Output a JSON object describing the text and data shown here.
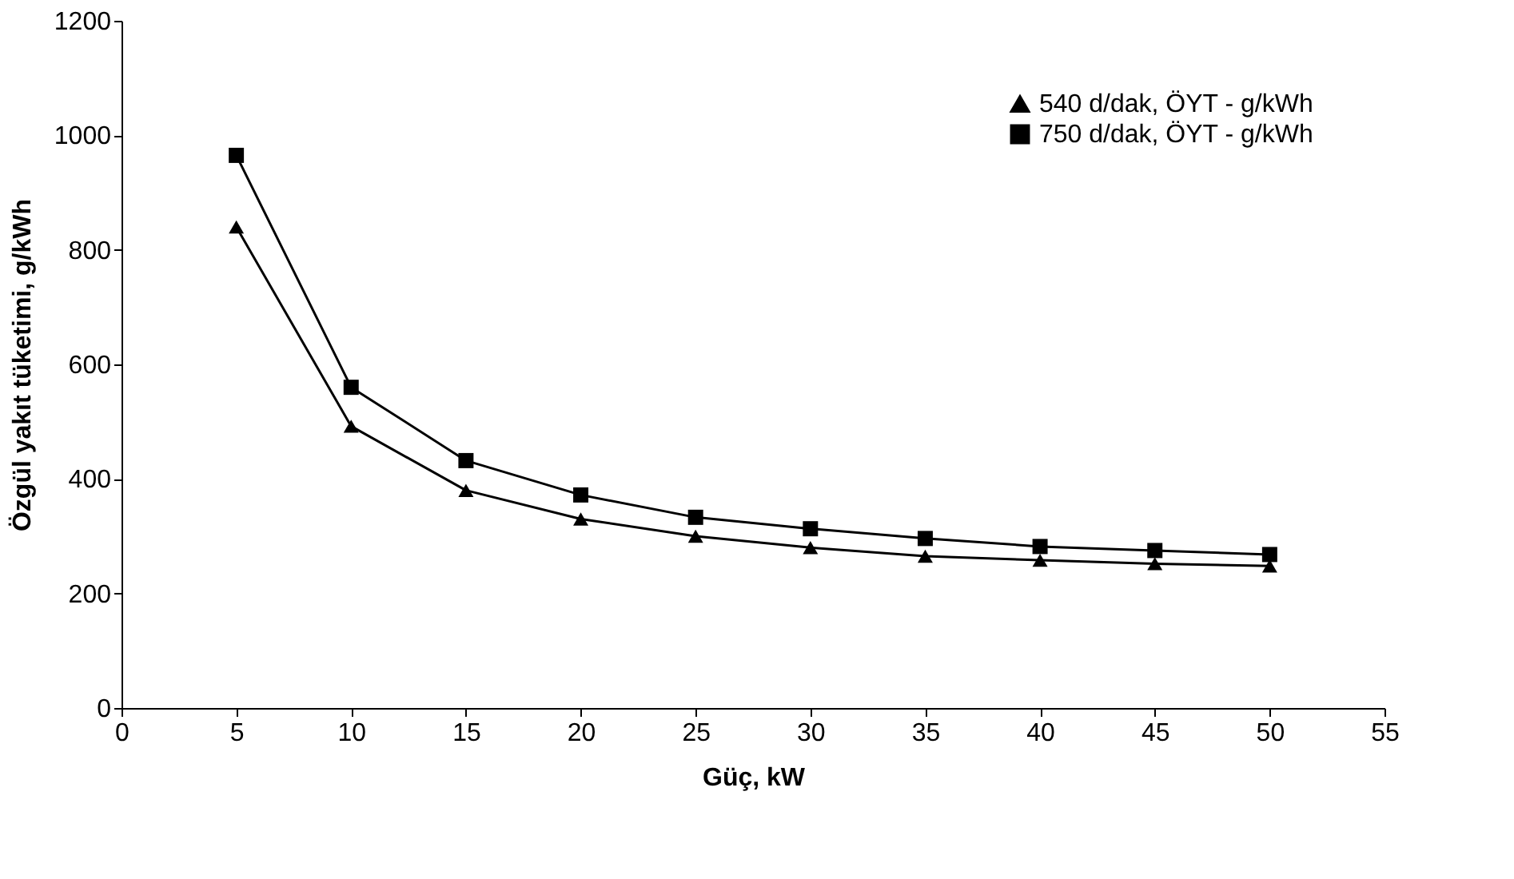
{
  "chart_data": {
    "type": "line",
    "xlabel": "Güç, kW",
    "ylabel": "Özgül yakıt tüketimi, g/kWh",
    "x": [
      5,
      10,
      15,
      20,
      25,
      30,
      35,
      40,
      45,
      50
    ],
    "series": [
      {
        "name": "540 d/dak, ÖYT - g/kWh",
        "color": "#000000",
        "marker": "triangle",
        "values": [
          840,
          492,
          380,
          330,
          300,
          280,
          265,
          258,
          252,
          248
        ]
      },
      {
        "name": "750 d/dak, ÖYT - g/kWh",
        "color": "#000000",
        "marker": "square",
        "values": [
          965,
          560,
          432,
          372,
          333,
          313,
          296,
          282,
          275,
          268
        ]
      }
    ],
    "xlim": [
      0,
      55
    ],
    "xticks": [
      0,
      5,
      10,
      15,
      20,
      25,
      30,
      35,
      40,
      45,
      50,
      55
    ],
    "ylim": [
      0,
      1200
    ],
    "yticks": [
      0,
      200,
      400,
      600,
      800,
      1000,
      1200
    ],
    "grid": false,
    "legend": "top right",
    "line_style": "solid"
  }
}
